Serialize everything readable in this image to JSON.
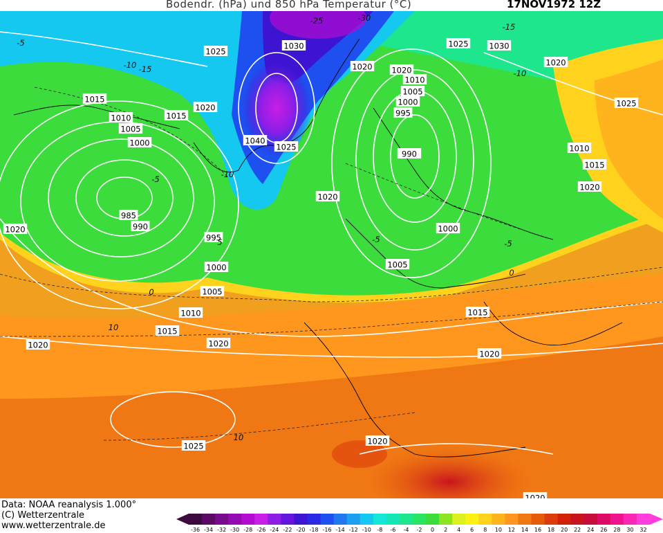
{
  "title": "Bodendr. (hPa) und 850 hPa Temperatur (°C)",
  "date": "17NOV1972 12Z",
  "footer": {
    "line1": "Data: NOAA reanalysis 1.000°",
    "line2": "(C) Wetterzentrale",
    "line3": "www.wetterzentrale.de"
  },
  "legend": {
    "ticks": [
      "-36",
      "-34",
      "-32",
      "-30",
      "-28",
      "-26",
      "-24",
      "-22",
      "-20",
      "-18",
      "-16",
      "-14",
      "-12",
      "-10",
      "-8",
      "-6",
      "-4",
      "-2",
      "0",
      "2",
      "4",
      "6",
      "8",
      "10",
      "12",
      "14",
      "16",
      "18",
      "20",
      "22",
      "24",
      "26",
      "28",
      "30",
      "32"
    ],
    "colors": [
      "#3c0a3c",
      "#5a0a64",
      "#780a8c",
      "#960ab4",
      "#b40ad2",
      "#c81ee6",
      "#8c1ee6",
      "#6414dc",
      "#3c14d2",
      "#2828e6",
      "#1e50f0",
      "#1e78f0",
      "#1ea0f0",
      "#14c8f0",
      "#14e6dc",
      "#14e6b4",
      "#1ee68c",
      "#28e664",
      "#3cdc3c",
      "#8ce61e",
      "#dcf01e",
      "#fff014",
      "#ffd21e",
      "#ffb41e",
      "#ff961e",
      "#f07814",
      "#e65a0a",
      "#dc3c0a",
      "#d21e0a",
      "#c8141e",
      "#c80a3c",
      "#dc0a64",
      "#f0148c",
      "#fa28b4",
      "#ff3cdc"
    ]
  },
  "pressure_labels": [
    {
      "text": "1025"
    },
    {
      "text": "1030"
    },
    {
      "text": "1015"
    },
    {
      "text": "1010"
    },
    {
      "text": "1005"
    },
    {
      "text": "1000"
    },
    {
      "text": "1015"
    },
    {
      "text": "1020"
    },
    {
      "text": "1040"
    },
    {
      "text": "1025"
    },
    {
      "text": "985"
    },
    {
      "text": "990"
    },
    {
      "text": "1020"
    },
    {
      "text": "995"
    },
    {
      "text": "1000"
    },
    {
      "text": "1005"
    },
    {
      "text": "1010"
    },
    {
      "text": "1015"
    },
    {
      "text": "1020"
    },
    {
      "text": "1020"
    },
    {
      "text": "1025"
    },
    {
      "text": "1020"
    },
    {
      "text": "1015"
    },
    {
      "text": "1010"
    },
    {
      "text": "1005"
    },
    {
      "text": "1000"
    },
    {
      "text": "995"
    },
    {
      "text": "990"
    },
    {
      "text": "1020"
    },
    {
      "text": "1005"
    },
    {
      "text": "1000"
    },
    {
      "text": "1025"
    },
    {
      "text": "1030"
    },
    {
      "text": "1020"
    },
    {
      "text": "1025"
    },
    {
      "text": "1010"
    },
    {
      "text": "1015"
    },
    {
      "text": "1020"
    },
    {
      "text": "1015"
    },
    {
      "text": "1020"
    },
    {
      "text": "1020"
    },
    {
      "text": "1020"
    },
    {
      "text": "1020"
    }
  ],
  "temp_labels": [
    {
      "text": "-25"
    },
    {
      "text": "-30"
    },
    {
      "text": "-15"
    },
    {
      "text": "-10"
    },
    {
      "text": "-10"
    },
    {
      "text": "-15"
    },
    {
      "text": "-5"
    },
    {
      "text": "-10"
    },
    {
      "text": "-5"
    },
    {
      "text": "-5"
    },
    {
      "text": "5"
    },
    {
      "text": "0"
    },
    {
      "text": "10"
    },
    {
      "text": "10"
    },
    {
      "text": "0"
    },
    {
      "text": "-5"
    }
  ]
}
